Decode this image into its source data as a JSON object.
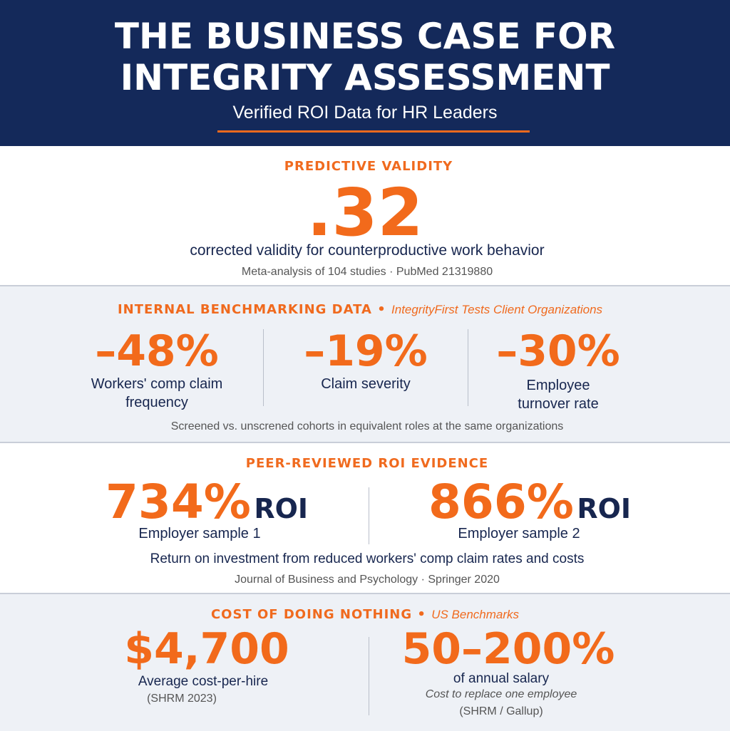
{
  "header": {
    "title_line1": "THE BUSINESS CASE FOR",
    "title_line2": "INTEGRITY ASSESSMENT",
    "subtitle": "Verified ROI Data for HR Leaders"
  },
  "sections": [
    {
      "label": "PREDICTIVE VALIDITY",
      "value": ".32",
      "description": "corrected validity for counterproductive work behavior",
      "source": "Meta-analysis of 104 studies · PubMed 21319880"
    },
    {
      "label": "INTERNAL BENCHMARKING DATA",
      "tag": "IntegrityFirst Tests Client Organizations",
      "stats": [
        {
          "value": "–48%",
          "label": "Workers' comp claim frequency"
        },
        {
          "value": "–19%",
          "label": "Claim severity"
        },
        {
          "value": "–30%",
          "label": "Employee turnover rate"
        }
      ],
      "note": "Screened vs. unscrened cohorts in equivalent roles at the same organizations"
    },
    {
      "label": "PEER-REVIEWED ROI EVIDENCE",
      "stats": [
        {
          "value": "734%",
          "suffix": "ROI",
          "label": "Employer sample 1"
        },
        {
          "value": "866%",
          "suffix": "ROI",
          "label": "Employer sample 2"
        }
      ],
      "note": "Return on investment from reduced workers' comp claim rates and costs",
      "source": "Journal of Business and Psychology · Springer 2020"
    },
    {
      "label": "COST OF DOING NOTHING",
      "tag": "US Benchmarks",
      "stats": [
        {
          "value": "$4,700",
          "label": "Average cost-per-hire",
          "source": "(SHRM 2023)"
        },
        {
          "value": "50–200%",
          "label": "of annual salary",
          "detail": "Cost to replace one employee",
          "source": "(SHRM / Gallup)"
        }
      ]
    }
  ]
}
